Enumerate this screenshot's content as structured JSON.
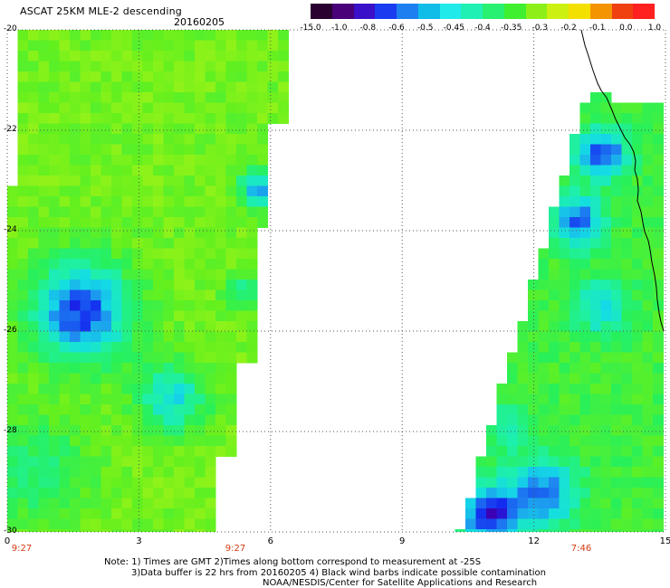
{
  "header": {
    "title": "ASCAT 25KM MLE-2 descending",
    "date": "20160205"
  },
  "colorbar": {
    "colors": [
      "#2a0030",
      "#4a0078",
      "#3a10c8",
      "#1a3cf0",
      "#1e80f0",
      "#10bce8",
      "#20eaea",
      "#20f0b4",
      "#28f070",
      "#40f030",
      "#8cf018",
      "#ccf010",
      "#f4e000",
      "#f49400",
      "#f04010",
      "#ff2020"
    ],
    "labels": [
      "-15.0",
      "-1.0",
      "-0.8",
      "-0.6",
      "-0.5",
      "-0.45",
      "-0.4",
      "-0.35",
      "-0.3",
      "-0.2",
      "-0.1",
      "0.0",
      "1.0"
    ]
  },
  "axes": {
    "y_labels": [
      "-20",
      "-22",
      "-24",
      "-26",
      "-28",
      "-30"
    ],
    "x_labels": [
      "0",
      "3",
      "6",
      "9",
      "12",
      "15"
    ],
    "time_labels": [
      "9:27",
      "9:27",
      "7:46"
    ]
  },
  "map_style": {
    "background": "#ffffff",
    "grid_color": "#555555",
    "coast_color": "#000000"
  },
  "notes": {
    "line1": "Note: 1) Times are GMT 2)Times along bottom correspond to measurement at -25S",
    "line2": "3)Data buffer is 22 hrs from 20160205 4) Black wind barbs indicate possible contamination",
    "line3": "NOAA/NESDIS/Center for Satellite Applications and Research"
  }
}
